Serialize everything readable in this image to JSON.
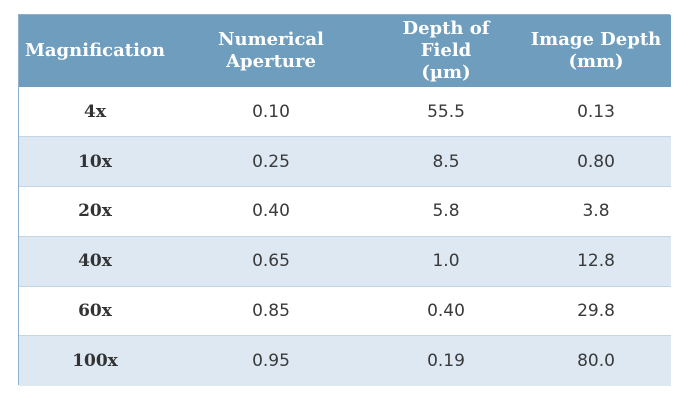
{
  "table": {
    "headers": [
      [
        "Magnification"
      ],
      [
        "Numerical Aperture"
      ],
      [
        "Depth of Field",
        "(µm)"
      ],
      [
        "Image Depth",
        "(mm)"
      ]
    ],
    "rows": [
      [
        "4x",
        "0.10",
        "55.5",
        "0.13"
      ],
      [
        "10x",
        "0.25",
        "8.5",
        "0.80"
      ],
      [
        "20x",
        "0.40",
        "5.8",
        "3.8"
      ],
      [
        "40x",
        "0.65",
        "1.0",
        "12.8"
      ],
      [
        "60x",
        "0.85",
        "0.40",
        "29.8"
      ],
      [
        "100x",
        "0.95",
        "0.19",
        "80.0"
      ]
    ],
    "colors": {
      "header_bg": "#6f9dbe",
      "row_alt_bg": "#dde8f3",
      "border": "#8fb0cc"
    }
  }
}
